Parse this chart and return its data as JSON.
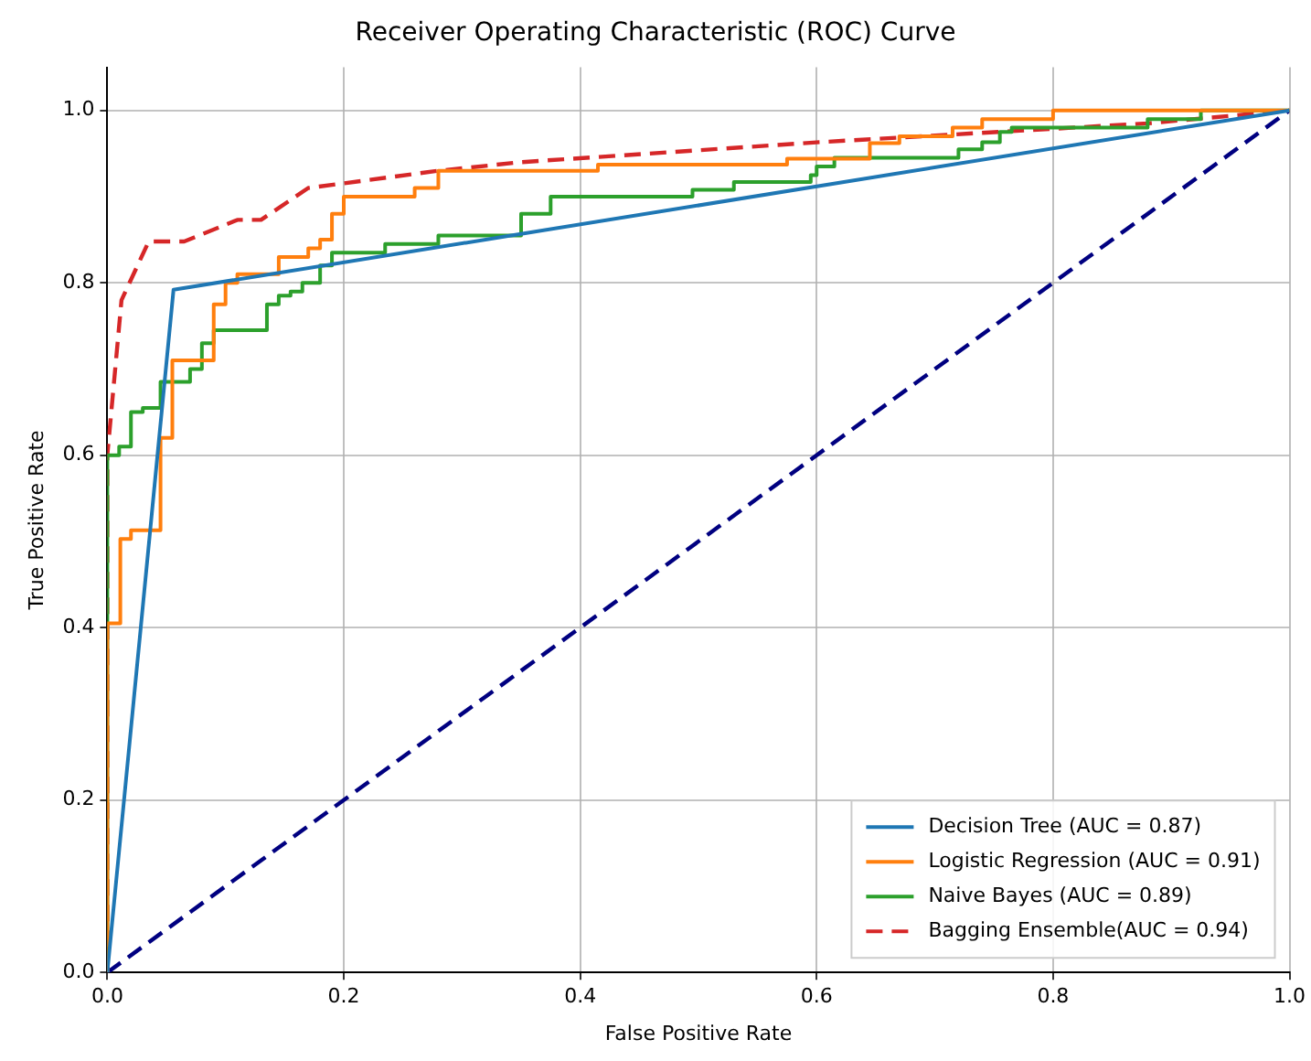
{
  "chart_data": {
    "type": "line",
    "title": "Receiver Operating Characteristic (ROC) Curve",
    "xlabel": "False Positive Rate",
    "ylabel": "True Positive Rate",
    "xlim": [
      0,
      1
    ],
    "ylim": [
      0,
      1.05
    ],
    "xticks": [
      {
        "value": 0,
        "label": "0.0"
      },
      {
        "value": 0.2,
        "label": "0.2"
      },
      {
        "value": 0.4,
        "label": "0.4"
      },
      {
        "value": 0.6,
        "label": "0.6"
      },
      {
        "value": 0.8,
        "label": "0.8"
      },
      {
        "value": 1,
        "label": "1.0"
      }
    ],
    "yticks": [
      {
        "value": 0,
        "label": "0.0"
      },
      {
        "value": 0.2,
        "label": "0.2"
      },
      {
        "value": 0.4,
        "label": "0.4"
      },
      {
        "value": 0.6,
        "label": "0.6"
      },
      {
        "value": 0.8,
        "label": "0.8"
      },
      {
        "value": 1,
        "label": "1.0"
      }
    ],
    "grid": true,
    "legend": "bottom right",
    "marker": "none",
    "series": [
      {
        "name": "Decision Tree (AUC = 0.87)",
        "color": "#1f77b4",
        "line_style": "solid",
        "x": [
          0,
          0.056,
          1
        ],
        "values": [
          0,
          0.792,
          1
        ]
      },
      {
        "name": "Logistic Regression (AUC = 0.91)",
        "type": "step",
        "color": "#ff7f0e",
        "line_style": "solid",
        "x": [
          0,
          0,
          0.011,
          0.02,
          0.045,
          0.055,
          0.09,
          0.1,
          0.11,
          0.145,
          0.17,
          0.18,
          0.19,
          0.2,
          0.26,
          0.28,
          0.415,
          0.575,
          0.645,
          0.67,
          0.715,
          0.74,
          0.8,
          1
        ],
        "values": [
          0,
          0.405,
          0.503,
          0.513,
          0.62,
          0.71,
          0.775,
          0.8,
          0.81,
          0.83,
          0.84,
          0.85,
          0.88,
          0.9,
          0.91,
          0.93,
          0.937,
          0.944,
          0.962,
          0.97,
          0.98,
          0.99,
          1,
          1
        ]
      },
      {
        "name": "Naive Bayes (AUC = 0.89)",
        "type": "step",
        "color": "#2ca02c",
        "line_style": "solid",
        "x": [
          0,
          0,
          0.01,
          0.02,
          0.03,
          0.045,
          0.07,
          0.08,
          0.09,
          0.135,
          0.145,
          0.155,
          0.165,
          0.18,
          0.19,
          0.235,
          0.28,
          0.35,
          0.375,
          0.495,
          0.53,
          0.595,
          0.6,
          0.615,
          0.72,
          0.74,
          0.755,
          0.765,
          0.88,
          0.925,
          1
        ],
        "values": [
          0,
          0.6,
          0.61,
          0.65,
          0.655,
          0.685,
          0.7,
          0.73,
          0.745,
          0.775,
          0.785,
          0.79,
          0.8,
          0.82,
          0.835,
          0.845,
          0.855,
          0.88,
          0.9,
          0.908,
          0.917,
          0.925,
          0.935,
          0.945,
          0.955,
          0.963,
          0.975,
          0.98,
          0.99,
          1,
          1
        ]
      },
      {
        "name": "Bagging Ensemble(AUC = 0.94)",
        "color": "#d62728",
        "line_style": "dashed",
        "x": [
          0,
          0,
          0.012,
          0.035,
          0.065,
          0.11,
          0.13,
          0.17,
          0.28,
          0.35,
          0.6,
          0.88,
          1
        ],
        "values": [
          0,
          0.6,
          0.78,
          0.848,
          0.848,
          0.873,
          0.873,
          0.91,
          0.93,
          0.94,
          0.963,
          0.985,
          1
        ]
      },
      {
        "color": "#000080",
        "line_style": "dashed",
        "x": [
          0,
          1
        ],
        "values": [
          0,
          1
        ]
      }
    ]
  }
}
